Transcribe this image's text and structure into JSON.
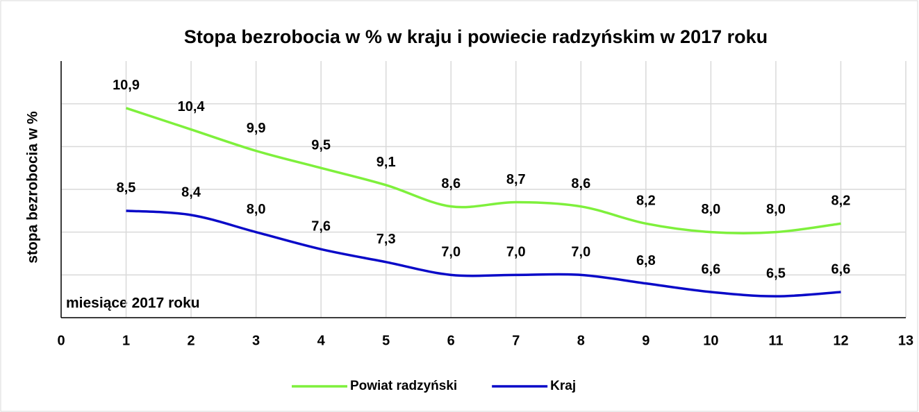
{
  "chart_data": {
    "type": "line",
    "title": "Stopa bezrobocia  w % w kraju i powiecie radzyńskim w 2017 roku",
    "y_label": "stopa bezrobocia w %",
    "annotation": "miesiące 2017 roku",
    "x": [
      1,
      2,
      3,
      4,
      5,
      6,
      7,
      8,
      9,
      10,
      11,
      12
    ],
    "xlim": [
      0,
      13
    ],
    "xticks": [
      0,
      1,
      2,
      3,
      4,
      5,
      6,
      7,
      8,
      9,
      10,
      11,
      12,
      13
    ],
    "ylim": [
      6,
      12
    ],
    "yticks": [
      6,
      7,
      8,
      9,
      10,
      11
    ],
    "grid": true,
    "smooth": true,
    "legend": "bottom",
    "series": [
      {
        "name": "Powiat radzyński",
        "color": "#7ef03c",
        "values": [
          10.9,
          10.4,
          9.9,
          9.5,
          9.1,
          8.6,
          8.7,
          8.6,
          8.2,
          8.0,
          8.0,
          8.2
        ],
        "value_labels": [
          "10,9",
          "10,4",
          "9,9",
          "9,5",
          "9,1",
          "8,6",
          "8,7",
          "8,6",
          "8,2",
          "8,0",
          "8,0",
          "8,2"
        ]
      },
      {
        "name": "Kraj",
        "color": "#0a0ac8",
        "values": [
          8.5,
          8.4,
          8.0,
          7.6,
          7.3,
          7.0,
          7.0,
          7.0,
          6.8,
          6.6,
          6.5,
          6.6
        ],
        "value_labels": [
          "8,5",
          "8,4",
          "8,0",
          "7,6",
          "7,3",
          "7,0",
          "7,0",
          "7,0",
          "6,8",
          "6,6",
          "6,5",
          "6,6"
        ]
      }
    ]
  }
}
